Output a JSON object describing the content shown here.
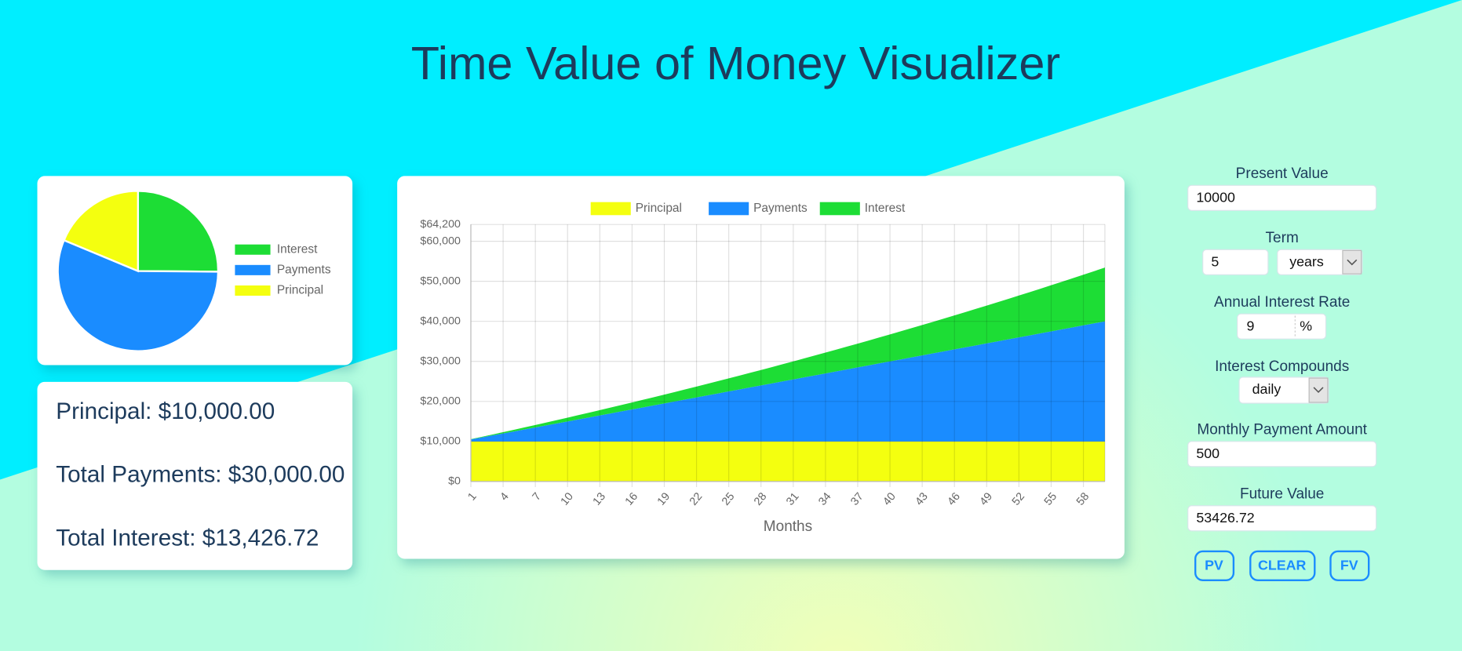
{
  "title": "Time Value of Money Visualizer",
  "summary": [
    "Principal: $10,000.00",
    "Total Payments: $30,000.00",
    "Total Interest: $13,426.72"
  ],
  "chart_data": [
    {
      "type": "pie",
      "categories": [
        "Interest",
        "Payments",
        "Principal"
      ],
      "values": [
        13426.72,
        30000,
        10000
      ],
      "colors": [
        "#1ddd35",
        "#1a8cff",
        "#f4ff0f"
      ],
      "legend": "right"
    },
    {
      "type": "area",
      "stacked": true,
      "xlabel": "Months",
      "x": [
        1,
        2,
        3,
        4,
        5,
        6,
        7,
        8,
        9,
        10,
        11,
        12,
        13,
        14,
        15,
        16,
        17,
        18,
        19,
        20,
        21,
        22,
        23,
        24,
        25,
        26,
        27,
        28,
        29,
        30,
        31,
        32,
        33,
        34,
        35,
        36,
        37,
        38,
        39,
        40,
        41,
        42,
        43,
        44,
        45,
        46,
        47,
        48,
        49,
        50,
        51,
        52,
        53,
        54,
        55,
        56,
        57,
        58,
        59,
        60
      ],
      "xlim": [
        1,
        60
      ],
      "xticks": [
        1,
        4,
        7,
        10,
        13,
        16,
        19,
        22,
        25,
        28,
        31,
        34,
        37,
        40,
        43,
        46,
        49,
        52,
        55,
        58
      ],
      "ylim": [
        0,
        64200
      ],
      "yticks": [
        {
          "value": 0,
          "label": "$0"
        },
        {
          "value": 10000,
          "label": "$10,000"
        },
        {
          "value": 20000,
          "label": "$20,000"
        },
        {
          "value": 30000,
          "label": "$30,000"
        },
        {
          "value": 40000,
          "label": "$40,000"
        },
        {
          "value": 50000,
          "label": "$50,000"
        },
        {
          "value": 60000,
          "label": "$60,000"
        },
        {
          "value": 64200,
          "label": "$64,200"
        }
      ],
      "grid": true,
      "legend": "top",
      "series": [
        {
          "name": "Principal",
          "color": "#f4ff0f",
          "values": [
            10000,
            10000,
            10000,
            10000,
            10000,
            10000,
            10000,
            10000,
            10000,
            10000,
            10000,
            10000,
            10000,
            10000,
            10000,
            10000,
            10000,
            10000,
            10000,
            10000,
            10000,
            10000,
            10000,
            10000,
            10000,
            10000,
            10000,
            10000,
            10000,
            10000,
            10000,
            10000,
            10000,
            10000,
            10000,
            10000,
            10000,
            10000,
            10000,
            10000,
            10000,
            10000,
            10000,
            10000,
            10000,
            10000,
            10000,
            10000,
            10000,
            10000,
            10000,
            10000,
            10000,
            10000,
            10000,
            10000,
            10000,
            10000,
            10000,
            10000
          ]
        },
        {
          "name": "Payments",
          "color": "#1a8cff",
          "values": [
            500,
            1000,
            1500,
            2000,
            2500,
            3000,
            3500,
            4000,
            4500,
            5000,
            5500,
            6000,
            6500,
            7000,
            7500,
            8000,
            8500,
            9000,
            9500,
            10000,
            10500,
            11000,
            11500,
            12000,
            12500,
            13000,
            13500,
            14000,
            14500,
            15000,
            15500,
            16000,
            16500,
            17000,
            17500,
            18000,
            18500,
            19000,
            19500,
            20000,
            20500,
            21000,
            21500,
            22000,
            22500,
            23000,
            23500,
            24000,
            24500,
            25000,
            25500,
            26000,
            26500,
            27000,
            27500,
            28000,
            28500,
            29000,
            29500,
            30000
          ]
        },
        {
          "name": "Interest",
          "color": "#1ddd35",
          "values": [
            75,
            155,
            239,
            327,
            420,
            517,
            619,
            725,
            836,
            952,
            1072,
            1197,
            1326,
            1460,
            1599,
            1743,
            1892,
            2045,
            2204,
            2367,
            2535,
            2709,
            2887,
            3071,
            3260,
            3454,
            3653,
            3857,
            4067,
            4282,
            4502,
            4728,
            4960,
            5196,
            5439,
            5687,
            5940,
            6200,
            6465,
            6735,
            7012,
            7294,
            7583,
            7877,
            8177,
            8483,
            8796,
            9114,
            9439,
            9769,
            10106,
            10450,
            10799,
            11156,
            11518,
            11887,
            12263,
            12645,
            13034,
            13427
          ]
        }
      ]
    }
  ],
  "form": {
    "fields": [
      {
        "label": "Present Value",
        "value": "10000"
      },
      {
        "label": "Term",
        "value": "5",
        "unit": "years"
      },
      {
        "label": "Annual Interest Rate",
        "value": "9",
        "unit": "%"
      },
      {
        "label": "Interest Compounds",
        "value": "daily"
      },
      {
        "label": "Monthly Payment Amount",
        "value": "500"
      },
      {
        "label": "Future Value",
        "value": "53426.72"
      }
    ],
    "buttons": [
      "PV",
      "CLEAR",
      "FV"
    ]
  }
}
